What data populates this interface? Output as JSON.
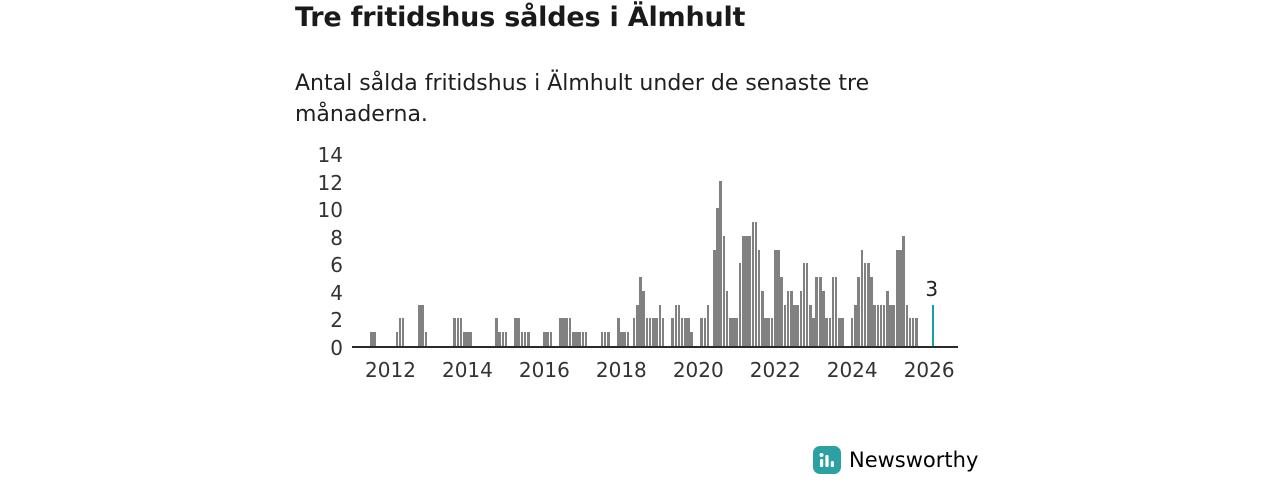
{
  "header": {
    "title": "Tre fritidshus såldes i Älmhult",
    "subtitle": "Antal sålda fritidshus i Älmhult under de senaste tre månaderna."
  },
  "chart_data": {
    "type": "bar",
    "title": "Tre fritidshus såldes i Älmhult",
    "subtitle": "Antal sålda fritidshus i Älmhult under de senaste tre månaderna.",
    "xlabel": "",
    "ylabel": "",
    "grid": false,
    "legend": "none",
    "xlim": [
      2011,
      2026.75
    ],
    "ylim": [
      0,
      14
    ],
    "x_ticks": [
      2012,
      2014,
      2016,
      2018,
      2020,
      2022,
      2024,
      2026
    ],
    "y_ticks": [
      0,
      2,
      4,
      6,
      8,
      10,
      12,
      14
    ],
    "bar_color": "#818181",
    "highlight_color": "#18a0a6",
    "points": [
      [
        2011.5,
        1
      ],
      [
        2011.58,
        1
      ],
      [
        2012.17,
        1
      ],
      [
        2012.25,
        2
      ],
      [
        2012.33,
        2
      ],
      [
        2012.75,
        3
      ],
      [
        2012.83,
        3
      ],
      [
        2012.92,
        1
      ],
      [
        2013.67,
        2
      ],
      [
        2013.75,
        2
      ],
      [
        2013.83,
        2
      ],
      [
        2013.92,
        1
      ],
      [
        2014.0,
        1
      ],
      [
        2014.08,
        1
      ],
      [
        2014.75,
        2
      ],
      [
        2014.83,
        1
      ],
      [
        2014.92,
        1
      ],
      [
        2015.0,
        1
      ],
      [
        2015.25,
        2
      ],
      [
        2015.33,
        2
      ],
      [
        2015.42,
        1
      ],
      [
        2015.5,
        1
      ],
      [
        2015.58,
        1
      ],
      [
        2016.0,
        1
      ],
      [
        2016.08,
        1
      ],
      [
        2016.17,
        1
      ],
      [
        2016.42,
        2
      ],
      [
        2016.5,
        2
      ],
      [
        2016.58,
        2
      ],
      [
        2016.67,
        2
      ],
      [
        2016.75,
        1
      ],
      [
        2016.83,
        1
      ],
      [
        2016.92,
        1
      ],
      [
        2017.0,
        1
      ],
      [
        2017.08,
        1
      ],
      [
        2017.5,
        1
      ],
      [
        2017.58,
        1
      ],
      [
        2017.67,
        1
      ],
      [
        2017.92,
        2
      ],
      [
        2018.0,
        1
      ],
      [
        2018.08,
        1
      ],
      [
        2018.17,
        1
      ],
      [
        2018.33,
        2
      ],
      [
        2018.42,
        3
      ],
      [
        2018.5,
        5
      ],
      [
        2018.58,
        4
      ],
      [
        2018.67,
        2
      ],
      [
        2018.75,
        2
      ],
      [
        2018.83,
        2
      ],
      [
        2018.92,
        2
      ],
      [
        2019.0,
        3
      ],
      [
        2019.08,
        2
      ],
      [
        2019.33,
        2
      ],
      [
        2019.42,
        3
      ],
      [
        2019.5,
        3
      ],
      [
        2019.58,
        2
      ],
      [
        2019.67,
        2
      ],
      [
        2019.75,
        2
      ],
      [
        2019.83,
        1
      ],
      [
        2020.08,
        2
      ],
      [
        2020.17,
        2
      ],
      [
        2020.25,
        3
      ],
      [
        2020.42,
        7
      ],
      [
        2020.5,
        10
      ],
      [
        2020.58,
        12
      ],
      [
        2020.67,
        8
      ],
      [
        2020.75,
        4
      ],
      [
        2020.83,
        2
      ],
      [
        2020.92,
        2
      ],
      [
        2021.0,
        2
      ],
      [
        2021.08,
        6
      ],
      [
        2021.17,
        8
      ],
      [
        2021.25,
        8
      ],
      [
        2021.33,
        8
      ],
      [
        2021.42,
        9
      ],
      [
        2021.5,
        9
      ],
      [
        2021.58,
        7
      ],
      [
        2021.67,
        4
      ],
      [
        2021.75,
        2
      ],
      [
        2021.83,
        2
      ],
      [
        2021.92,
        2
      ],
      [
        2022.0,
        7
      ],
      [
        2022.08,
        7
      ],
      [
        2022.17,
        5
      ],
      [
        2022.25,
        3
      ],
      [
        2022.33,
        4
      ],
      [
        2022.42,
        4
      ],
      [
        2022.5,
        3
      ],
      [
        2022.58,
        3
      ],
      [
        2022.67,
        4
      ],
      [
        2022.75,
        6
      ],
      [
        2022.83,
        6
      ],
      [
        2022.92,
        3
      ],
      [
        2023.0,
        2
      ],
      [
        2023.08,
        5
      ],
      [
        2023.17,
        5
      ],
      [
        2023.25,
        4
      ],
      [
        2023.33,
        2
      ],
      [
        2023.42,
        2
      ],
      [
        2023.5,
        5
      ],
      [
        2023.58,
        5
      ],
      [
        2023.67,
        2
      ],
      [
        2023.75,
        2
      ],
      [
        2024.0,
        2
      ],
      [
        2024.08,
        3
      ],
      [
        2024.17,
        5
      ],
      [
        2024.25,
        7
      ],
      [
        2024.33,
        6
      ],
      [
        2024.42,
        6
      ],
      [
        2024.5,
        5
      ],
      [
        2024.58,
        3
      ],
      [
        2024.67,
        3
      ],
      [
        2024.75,
        3
      ],
      [
        2024.83,
        3
      ],
      [
        2024.92,
        4
      ],
      [
        2025.0,
        3
      ],
      [
        2025.08,
        3
      ],
      [
        2025.17,
        7
      ],
      [
        2025.25,
        7
      ],
      [
        2025.33,
        8
      ],
      [
        2025.42,
        3
      ],
      [
        2025.5,
        2
      ],
      [
        2025.58,
        2
      ],
      [
        2025.67,
        2
      ]
    ],
    "highlight_point": {
      "x": 2026.1,
      "value": 3,
      "label": "3"
    }
  },
  "branding": {
    "name": "Newsworthy",
    "color": "#2ba1a4",
    "logo_icon": "bar-chart-icon"
  }
}
